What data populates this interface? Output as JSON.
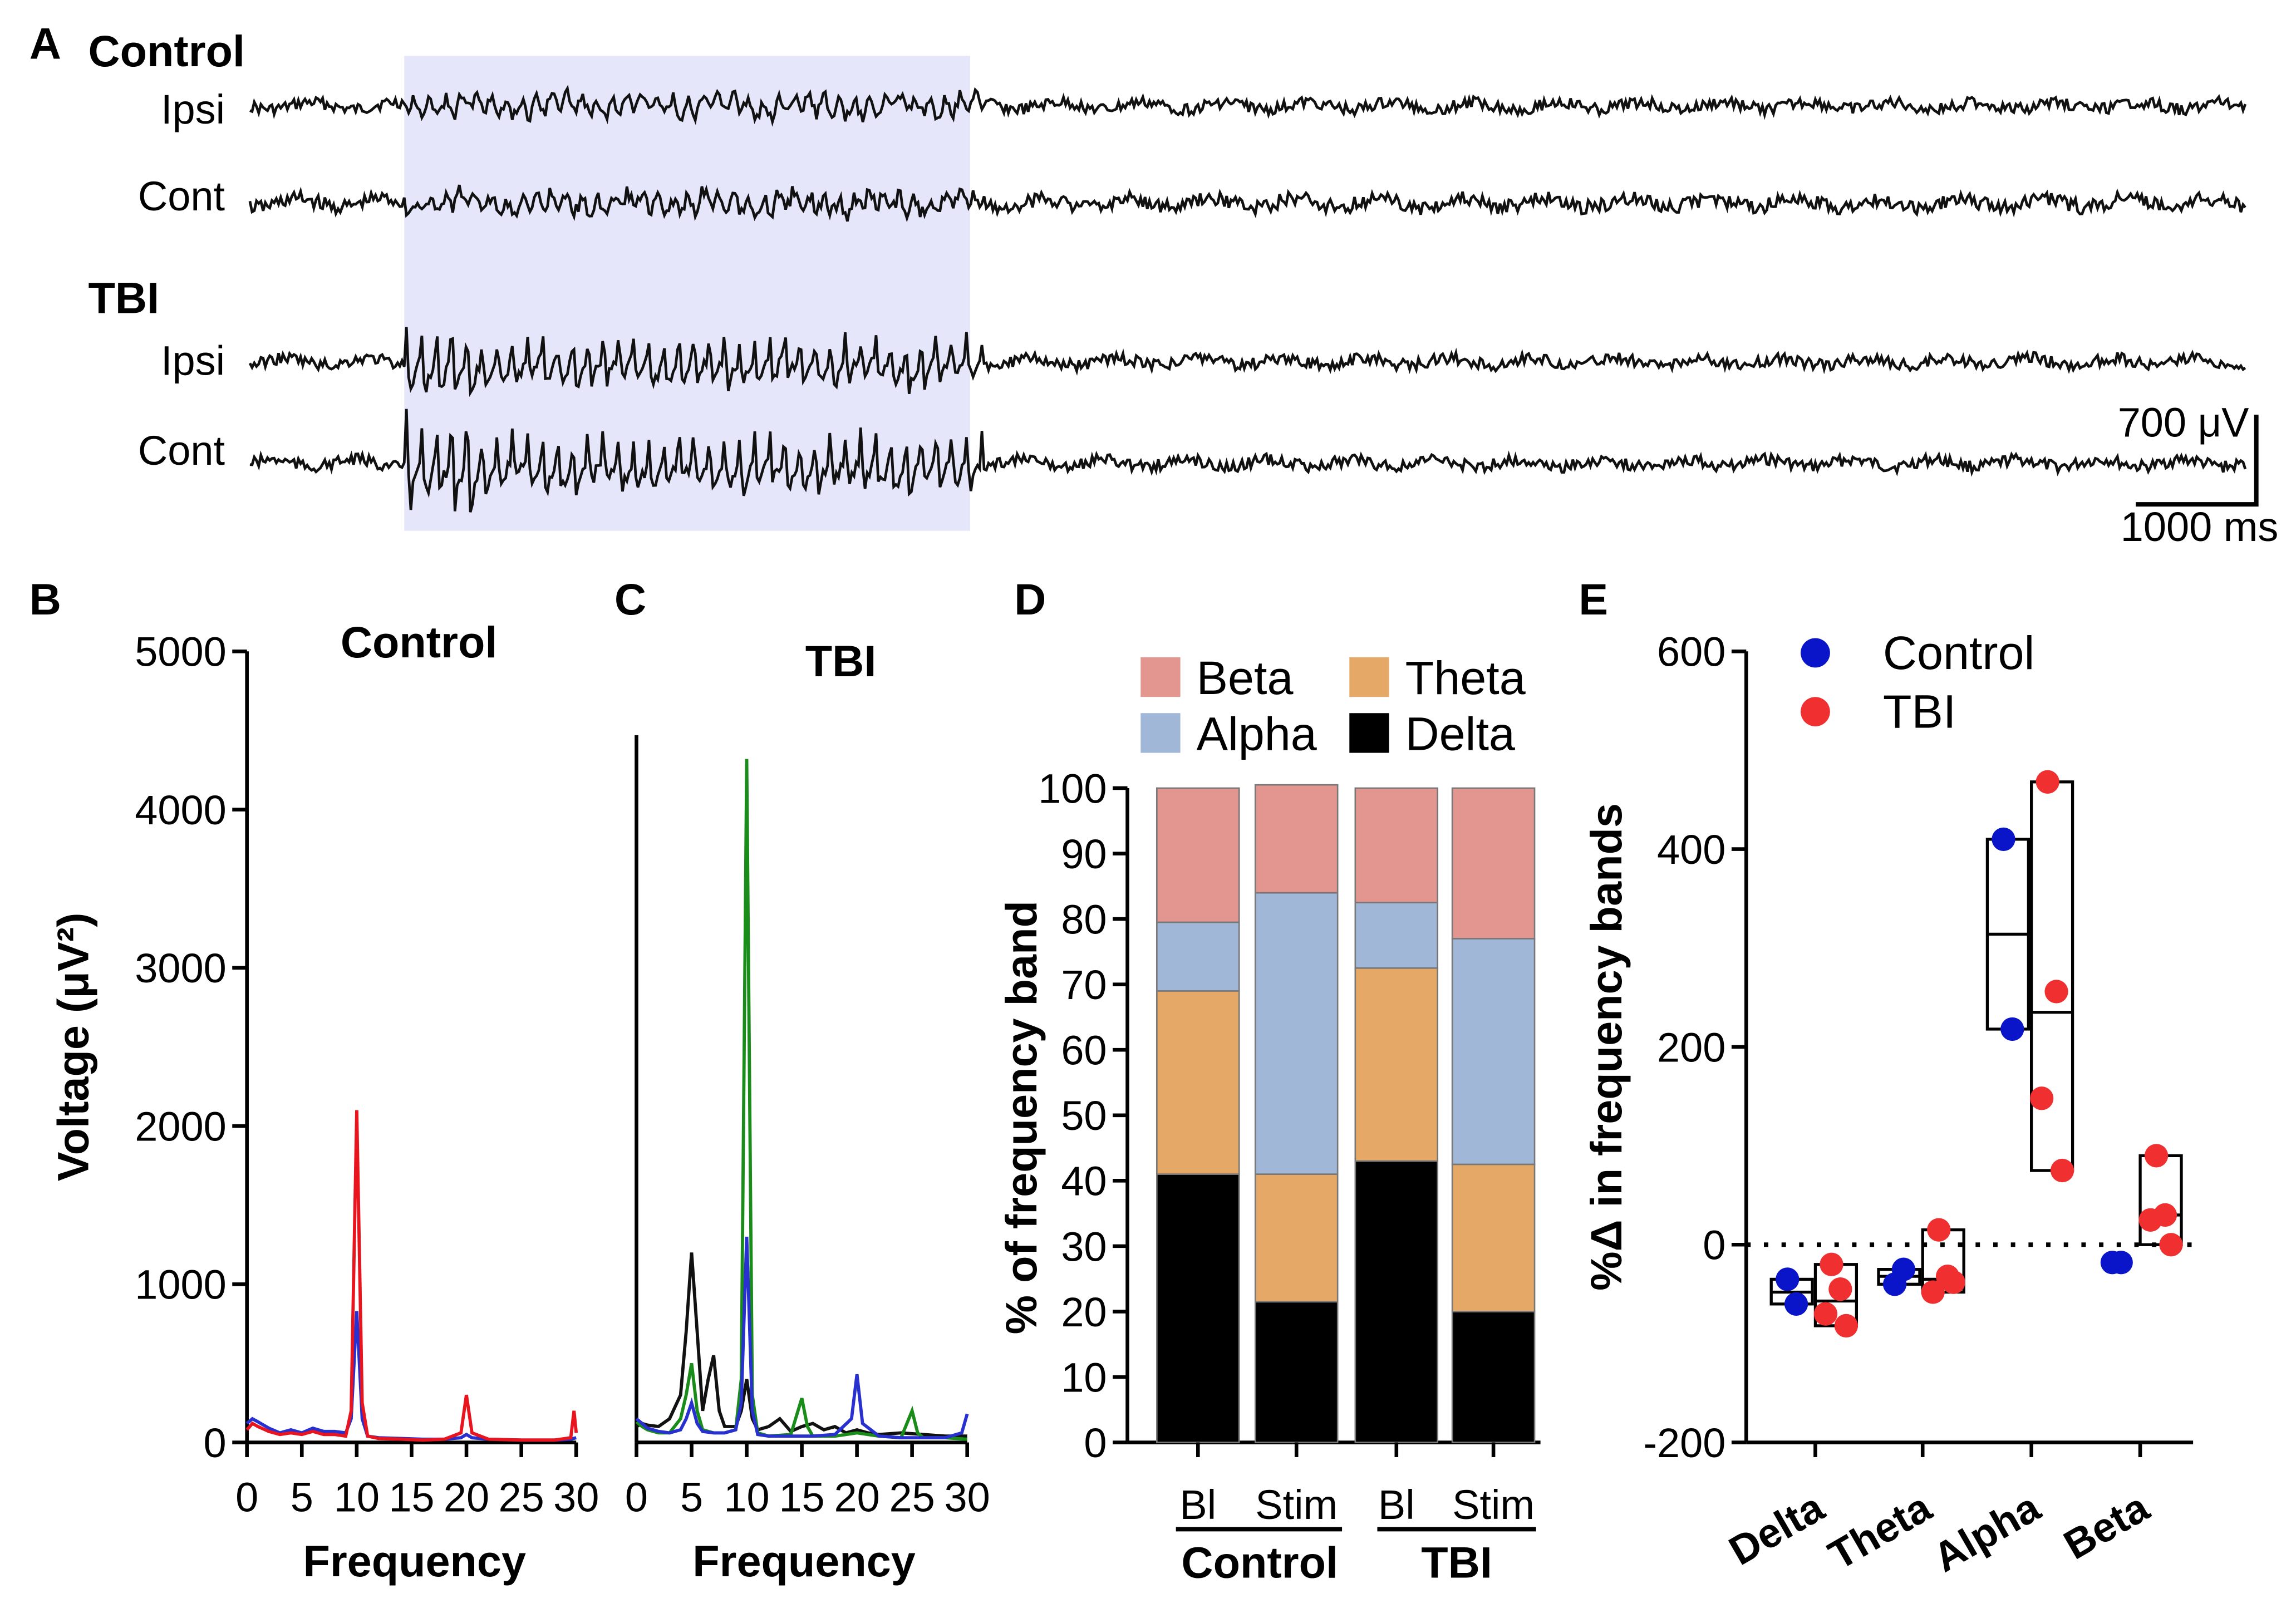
{
  "panel_a": {
    "letter": "A",
    "groups": [
      {
        "name": "Control",
        "rows": [
          {
            "label": "Ipsi"
          },
          {
            "label": "Cont"
          }
        ]
      },
      {
        "name": "TBI",
        "rows": [
          {
            "label": "Ipsi"
          },
          {
            "label": "Cont"
          }
        ]
      }
    ],
    "scale_voltage": "700 μV",
    "scale_time": "1000 ms",
    "stim_color": "#e6e6fb"
  },
  "panel_b": {
    "letter": "B",
    "title": "Control",
    "ylabel": "Voltage (μV²)",
    "xlabel": "Frequency"
  },
  "panel_c": {
    "letter": "C",
    "title": "TBI",
    "xlabel": "Frequency"
  },
  "panel_d": {
    "letter": "D",
    "ylabel": "% of frequency band",
    "group_labels": [
      "Control",
      "TBI"
    ]
  },
  "panel_e": {
    "letter": "E",
    "ylabel": "%Δ in frequency bands"
  },
  "colors": {
    "beta": "#e39590",
    "alpha": "#a0b7d8",
    "theta": "#e6a866",
    "delta": "#000000",
    "control": "#0a14c8",
    "tbi": "#f03030",
    "spec_red": "#e8141e",
    "spec_blue": "#2830d0",
    "spec_green": "#1a8c1a",
    "spec_black": "#111111"
  },
  "chart_data": [
    {
      "id": "B",
      "type": "line",
      "title": "Control",
      "xlabel": "Frequency",
      "ylabel": "Voltage (μV²)",
      "xlim": [
        0,
        30
      ],
      "ylim": [
        0,
        5000
      ],
      "xticks": [
        0,
        5,
        10,
        15,
        20,
        25,
        30
      ],
      "yticks": [
        0,
        1000,
        2000,
        3000,
        4000,
        5000
      ],
      "series": [
        {
          "color": "#2830d0",
          "x": [
            0,
            0.5,
            1,
            2,
            3,
            4,
            5,
            6,
            7,
            8,
            9,
            9.5,
            10,
            10.5,
            11,
            12,
            14,
            16,
            18,
            19.5,
            20,
            20.5,
            22,
            25,
            28,
            29.5,
            30
          ],
          "y": [
            120,
            150,
            130,
            90,
            60,
            80,
            60,
            90,
            70,
            70,
            60,
            150,
            830,
            150,
            40,
            30,
            25,
            20,
            20,
            30,
            50,
            30,
            20,
            15,
            15,
            20,
            30
          ]
        },
        {
          "color": "#e8141e",
          "x": [
            0,
            0.5,
            1,
            2,
            3,
            4,
            5,
            6,
            7,
            8,
            9,
            9.5,
            10,
            10.5,
            11,
            12,
            14,
            16,
            18,
            19.5,
            20,
            20.5,
            22,
            25,
            28,
            29.5,
            29.8,
            30
          ],
          "y": [
            80,
            120,
            100,
            70,
            50,
            60,
            50,
            70,
            50,
            50,
            40,
            200,
            2100,
            250,
            40,
            25,
            20,
            15,
            20,
            60,
            300,
            60,
            20,
            15,
            15,
            30,
            200,
            60
          ]
        }
      ]
    },
    {
      "id": "C",
      "type": "line",
      "title": "TBI",
      "xlabel": "Frequency",
      "ylabel": "",
      "xlim": [
        0,
        30
      ],
      "ylim": [
        0,
        5000
      ],
      "xticks": [
        0,
        5,
        10,
        15,
        20,
        25,
        30
      ],
      "series": [
        {
          "color": "#111111",
          "x": [
            0,
            0.5,
            1,
            2,
            3,
            4,
            4.5,
            5,
            5.5,
            6,
            6.5,
            7,
            7.5,
            8,
            9,
            9.5,
            10,
            10.5,
            11,
            12,
            13,
            14,
            15,
            16,
            17,
            18,
            19,
            20,
            21,
            22,
            24,
            26,
            28,
            30
          ],
          "y": [
            100,
            120,
            110,
            100,
            150,
            300,
            700,
            1200,
            700,
            200,
            400,
            550,
            200,
            100,
            100,
            200,
            400,
            150,
            80,
            100,
            150,
            70,
            100,
            120,
            80,
            100,
            60,
            80,
            60,
            50,
            60,
            50,
            40,
            40
          ]
        },
        {
          "color": "#1a8c1a",
          "x": [
            0,
            0.5,
            1,
            2,
            3,
            4,
            4.5,
            5,
            5.5,
            6,
            7,
            8,
            9,
            9.5,
            10,
            10.5,
            11,
            12,
            14,
            15,
            15.5,
            16,
            18,
            20,
            22,
            24,
            25,
            25.5,
            26,
            28,
            30
          ],
          "y": [
            130,
            100,
            80,
            60,
            60,
            150,
            300,
            500,
            200,
            80,
            60,
            60,
            80,
            400,
            4320,
            300,
            60,
            40,
            50,
            280,
            100,
            40,
            40,
            60,
            40,
            30,
            200,
            60,
            30,
            30,
            20
          ]
        },
        {
          "color": "#2830d0",
          "x": [
            0,
            0.5,
            1,
            2,
            3,
            4,
            4.5,
            5,
            5.5,
            6,
            7,
            8,
            9,
            9.5,
            10,
            10.5,
            11,
            12,
            14,
            16,
            18,
            19.5,
            20,
            20.5,
            22,
            24,
            26,
            28,
            29.5,
            30
          ],
          "y": [
            150,
            120,
            90,
            70,
            60,
            80,
            150,
            250,
            120,
            70,
            60,
            60,
            80,
            250,
            1300,
            200,
            50,
            40,
            40,
            40,
            50,
            150,
            430,
            120,
            40,
            30,
            30,
            30,
            60,
            180
          ]
        }
      ]
    },
    {
      "id": "D",
      "type": "bar",
      "stacked": true,
      "ylabel": "% of frequency band",
      "ylim": [
        0,
        100
      ],
      "yticks": [
        0,
        10,
        20,
        30,
        40,
        50,
        60,
        70,
        80,
        90,
        100
      ],
      "categories": [
        "Bl",
        "Stim",
        "Bl",
        "Stim"
      ],
      "groups": [
        "Control",
        "TBI"
      ],
      "legend": [
        "Beta",
        "Theta",
        "Alpha",
        "Delta"
      ],
      "series": [
        {
          "name": "Delta",
          "color": "#000000",
          "values": [
            41,
            21.5,
            43,
            20
          ]
        },
        {
          "name": "Theta",
          "color": "#e6a866",
          "values": [
            28,
            19.5,
            29.5,
            22.5
          ]
        },
        {
          "name": "Alpha",
          "color": "#a0b7d8",
          "values": [
            10.5,
            43,
            10,
            34.5
          ]
        },
        {
          "name": "Beta",
          "color": "#e39590",
          "values": [
            20.5,
            16.5,
            17.5,
            23
          ]
        }
      ]
    },
    {
      "id": "E",
      "type": "scatter",
      "ylabel": "%Δ in frequency bands",
      "ylim": [
        -200,
        600
      ],
      "yticks": [
        -200,
        0,
        200,
        400,
        600
      ],
      "categories": [
        "Delta",
        "Theta",
        "Alpha",
        "Beta"
      ],
      "series": [
        {
          "name": "Control",
          "color": "#0a14c8",
          "points": [
            [
              0,
              -35
            ],
            [
              0,
              -60
            ],
            [
              1,
              -40
            ],
            [
              1,
              -25
            ],
            [
              2,
              410
            ],
            [
              2,
              218
            ],
            [
              3,
              -18
            ],
            [
              3,
              -18
            ]
          ],
          "boxes": [
            [
              -60,
              -48,
              -35
            ],
            [
              -40,
              -32,
              -25
            ],
            [
              218,
              314,
              410
            ],
            null
          ]
        },
        {
          "name": "TBI",
          "color": "#f03030",
          "points": [
            [
              0,
              -20
            ],
            [
              0,
              -45
            ],
            [
              0,
              -70
            ],
            [
              0,
              -82
            ],
            [
              1,
              15
            ],
            [
              1,
              -32
            ],
            [
              1,
              -48
            ],
            [
              1,
              -38
            ],
            [
              2,
              468
            ],
            [
              2,
              256
            ],
            [
              2,
              148
            ],
            [
              2,
              75
            ],
            [
              3,
              90
            ],
            [
              3,
              30
            ],
            [
              3,
              25
            ],
            [
              3,
              0
            ]
          ],
          "boxes": [
            [
              -82,
              -57,
              -20
            ],
            [
              -48,
              -35,
              15
            ],
            [
              75,
              235,
              468
            ],
            [
              0,
              30,
              90
            ]
          ]
        }
      ]
    }
  ]
}
